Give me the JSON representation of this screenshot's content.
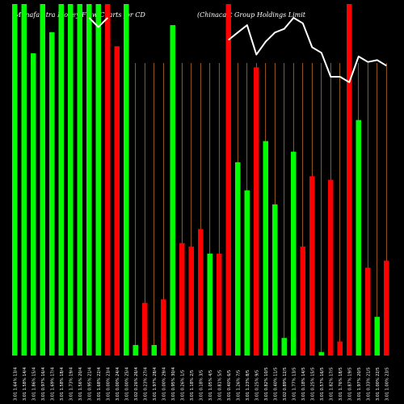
{
  "header": {
    "title_left": "Munafa  ntra  Money  Flow  Charts for CD",
    "title_right": "(Chinacast  Group Holdings Limit"
  },
  "colors": {
    "background": "#000000",
    "up": "#00ff00",
    "down": "#ff0000",
    "grid": "#ff9933",
    "price_line": "#ffffff",
    "label": "#ffffff"
  },
  "chart_data": {
    "type": "bar",
    "bars": [
      {
        "color": "up",
        "value": 100,
        "label": "3.01 1.64% 13/4"
      },
      {
        "color": "up",
        "value": 100,
        "label": "3.01 1.58% 14/4"
      },
      {
        "color": "up",
        "value": 86,
        "label": "3.01 1.86% 15/4"
      },
      {
        "color": "up",
        "value": 100,
        "label": "3.01 0.97% 16/4"
      },
      {
        "color": "up",
        "value": 92,
        "label": "3.01 1.69% 17/4"
      },
      {
        "color": "up",
        "value": 100,
        "label": "3.01 1.58% 18/4"
      },
      {
        "color": "up",
        "value": 100,
        "label": "3.01 1.73% 19/4"
      },
      {
        "color": "up",
        "value": 100,
        "label": "3.01 1.56% 20/4"
      },
      {
        "color": "up",
        "value": 100,
        "label": "3.01 0.95% 21/4"
      },
      {
        "color": "up",
        "value": 100,
        "label": "3.01 1.68% 22/4"
      },
      {
        "color": "down",
        "value": 100,
        "label": "3.01 0.00% 23/4"
      },
      {
        "color": "down",
        "value": 88,
        "label": "3.01 0.00% 24/4"
      },
      {
        "color": "up",
        "value": 100,
        "label": "3.01 0.00% 25/4"
      },
      {
        "color": "up",
        "value": 3,
        "label": "3.02 0.26% 26/4"
      },
      {
        "color": "down",
        "value": 15,
        "label": "3.01 0.23% 27/4"
      },
      {
        "color": "up",
        "value": 3,
        "label": "3.01 1.97% 28/4"
      },
      {
        "color": "down",
        "value": 16,
        "label": "3.01 0.00% 29/4"
      },
      {
        "color": "up",
        "value": 94,
        "label": "3.01 0.95% 30/4"
      },
      {
        "color": "down",
        "value": 32,
        "label": "3.01 0.26% 1/5"
      },
      {
        "color": "down",
        "value": 31,
        "label": "3.01 1.18% 2/5"
      },
      {
        "color": "down",
        "value": 36,
        "label": "3.01 0.18% 3/5"
      },
      {
        "color": "up",
        "value": 29,
        "label": "3.01 1.05% 4/5"
      },
      {
        "color": "down",
        "value": 29,
        "label": "3.01 0.81% 5/5"
      },
      {
        "color": "down",
        "value": 100,
        "label": "3.01 0.40% 6/5"
      },
      {
        "color": "up",
        "value": 55,
        "label": "3.01 1.26% 7/5"
      },
      {
        "color": "up",
        "value": 47,
        "label": "3.01 1.23% 8/5"
      },
      {
        "color": "down",
        "value": 82,
        "label": "3.01 0.25% 9/5"
      },
      {
        "color": "up",
        "value": 61,
        "label": "3.01 0.82% 10/5"
      },
      {
        "color": "up",
        "value": 43,
        "label": "3.01 0.40% 11/5"
      },
      {
        "color": "up",
        "value": 5,
        "label": "3.02 0.89% 12/5"
      },
      {
        "color": "up",
        "value": 58,
        "label": "3.01 1.77% 13/5"
      },
      {
        "color": "down",
        "value": 31,
        "label": "3.01 0.18% 14/5"
      },
      {
        "color": "down",
        "value": 51,
        "label": "3.01 0.25% 15/5"
      },
      {
        "color": "up",
        "value": 1,
        "label": "3.01 0.57% 16/5"
      },
      {
        "color": "down",
        "value": 50,
        "label": "3.01 1.82% 17/5"
      },
      {
        "color": "down",
        "value": 4,
        "label": "3.01 1.76% 18/5"
      },
      {
        "color": "down",
        "value": 100,
        "label": "3.01 0.87% 19/5"
      },
      {
        "color": "up",
        "value": 67,
        "label": "3.01 1.97% 20/5"
      },
      {
        "color": "down",
        "value": 25,
        "label": "3.01 0.33% 21/5"
      },
      {
        "color": "up",
        "value": 11,
        "label": "3.01 1.00% 22/5"
      },
      {
        "color": "down",
        "value": 27,
        "label": "3.01 1.00% 23/5"
      }
    ],
    "price_line": [
      null,
      null,
      null,
      null,
      null,
      null,
      null,
      null,
      100,
      95,
      100,
      null,
      null,
      null,
      null,
      null,
      null,
      null,
      null,
      null,
      null,
      null,
      null,
      88,
      92,
      96,
      80,
      87,
      92,
      94,
      100,
      97,
      84,
      81,
      68,
      68,
      65,
      79,
      76,
      77,
      74
    ],
    "ylim": [
      0,
      100
    ],
    "grid": "vertical"
  }
}
